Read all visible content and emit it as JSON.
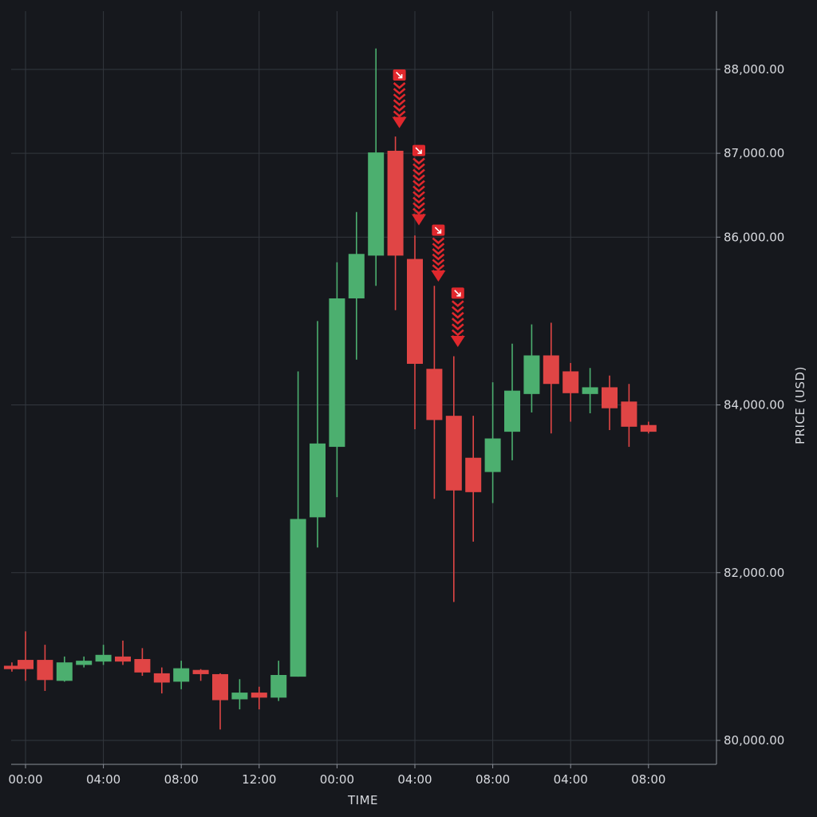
{
  "colors": {
    "background": "#16181d",
    "up": "#4caf6f",
    "down": "#e04545",
    "marker": "#e0282d",
    "grid": "#33373e",
    "text": "#d8dadf"
  },
  "chart_data": {
    "type": "candlestick",
    "xlabel": "TIME",
    "ylabel": "PRICE (USD)",
    "y_axis_position": "right",
    "grid": true,
    "ylim": [
      79800,
      88800
    ],
    "yticks": [
      {
        "value": 80000,
        "label": "80,000.00"
      },
      {
        "value": 82000,
        "label": "82,000.00"
      },
      {
        "value": 84000,
        "label": "84,000.00"
      },
      {
        "value": 86000,
        "label": "86,000.00"
      },
      {
        "value": 87000,
        "label": "87,000.00"
      },
      {
        "value": 88000,
        "label": "88,000.00"
      }
    ],
    "xlim": [
      -0.7,
      35.3
    ],
    "xticks": [
      {
        "index": 0,
        "label": "00:00"
      },
      {
        "index": 4,
        "label": "04:00"
      },
      {
        "index": 8,
        "label": "08:00"
      },
      {
        "index": 12,
        "label": "12:00"
      },
      {
        "index": 16,
        "label": "00:00"
      },
      {
        "index": 20,
        "label": "04:00"
      },
      {
        "index": 24,
        "label": "08:00"
      },
      {
        "index": 28,
        "label": "04:00"
      },
      {
        "index": 32,
        "label": "08:00"
      }
    ],
    "candles": [
      {
        "i": -0.7,
        "open": 80890,
        "high": 80930,
        "low": 80820,
        "close": 80850
      },
      {
        "i": 0,
        "open": 80960,
        "high": 81300,
        "low": 80710,
        "close": 80850
      },
      {
        "i": 1,
        "open": 80960,
        "high": 81140,
        "low": 80590,
        "close": 80720
      },
      {
        "i": 2,
        "open": 80710,
        "high": 81000,
        "low": 80700,
        "close": 80930
      },
      {
        "i": 3,
        "open": 80900,
        "high": 81000,
        "low": 80870,
        "close": 80950
      },
      {
        "i": 4,
        "open": 80940,
        "high": 81140,
        "low": 80900,
        "close": 81020
      },
      {
        "i": 5,
        "open": 81000,
        "high": 81190,
        "low": 80900,
        "close": 80940
      },
      {
        "i": 6,
        "open": 80970,
        "high": 81100,
        "low": 80770,
        "close": 80810
      },
      {
        "i": 7,
        "open": 80800,
        "high": 80870,
        "low": 80560,
        "close": 80690
      },
      {
        "i": 8,
        "open": 80700,
        "high": 80950,
        "low": 80610,
        "close": 80860
      },
      {
        "i": 9,
        "open": 80840,
        "high": 80850,
        "low": 80710,
        "close": 80790
      },
      {
        "i": 10,
        "open": 80790,
        "high": 80800,
        "low": 80130,
        "close": 80480
      },
      {
        "i": 11,
        "open": 80490,
        "high": 80730,
        "low": 80370,
        "close": 80570
      },
      {
        "i": 12,
        "open": 80570,
        "high": 80640,
        "low": 80370,
        "close": 80510
      },
      {
        "i": 13,
        "open": 80510,
        "high": 80950,
        "low": 80470,
        "close": 80780
      },
      {
        "i": 14,
        "open": 80760,
        "high": 84400,
        "low": 80760,
        "close": 82640
      },
      {
        "i": 15,
        "open": 82660,
        "high": 85000,
        "low": 82300,
        "close": 83540
      },
      {
        "i": 16,
        "open": 83500,
        "high": 85700,
        "low": 82900,
        "close": 85270
      },
      {
        "i": 17,
        "open": 85270,
        "high": 86300,
        "low": 84540,
        "close": 85800
      },
      {
        "i": 18,
        "open": 85780,
        "high": 88250,
        "low": 85420,
        "close": 87010
      },
      {
        "i": 19,
        "open": 87030,
        "high": 87200,
        "low": 85130,
        "close": 85780
      },
      {
        "i": 20,
        "open": 85740,
        "high": 86020,
        "low": 83710,
        "close": 84490
      },
      {
        "i": 21,
        "open": 84430,
        "high": 85420,
        "low": 82880,
        "close": 83820
      },
      {
        "i": 22,
        "open": 83870,
        "high": 84580,
        "low": 81650,
        "close": 82980
      },
      {
        "i": 23,
        "open": 83370,
        "high": 83870,
        "low": 82370,
        "close": 82960
      },
      {
        "i": 24,
        "open": 83200,
        "high": 84270,
        "low": 82830,
        "close": 83600
      },
      {
        "i": 25,
        "open": 83680,
        "high": 84730,
        "low": 83340,
        "close": 84170
      },
      {
        "i": 26,
        "open": 84130,
        "high": 84960,
        "low": 83910,
        "close": 84590
      },
      {
        "i": 27,
        "open": 84590,
        "high": 84980,
        "low": 83660,
        "close": 84250
      },
      {
        "i": 28,
        "open": 84400,
        "high": 84500,
        "low": 83800,
        "close": 84140
      },
      {
        "i": 29,
        "open": 84130,
        "high": 84440,
        "low": 83900,
        "close": 84210
      },
      {
        "i": 30,
        "open": 84210,
        "high": 84350,
        "low": 83700,
        "close": 83960
      },
      {
        "i": 31,
        "open": 84040,
        "high": 84250,
        "low": 83500,
        "close": 83740
      },
      {
        "i": 32,
        "open": 83760,
        "high": 83800,
        "low": 83660,
        "close": 83680
      }
    ],
    "markers": [
      {
        "i": 19,
        "price_top": 88000,
        "price_tip": 87300,
        "type": "sell-signal"
      },
      {
        "i": 20,
        "price_top": 87100,
        "price_tip": 86140,
        "type": "sell-signal"
      },
      {
        "i": 21,
        "price_top": 86150,
        "price_tip": 85470,
        "type": "sell-signal"
      },
      {
        "i": 22,
        "price_top": 85400,
        "price_tip": 84690,
        "type": "sell-signal"
      }
    ]
  }
}
